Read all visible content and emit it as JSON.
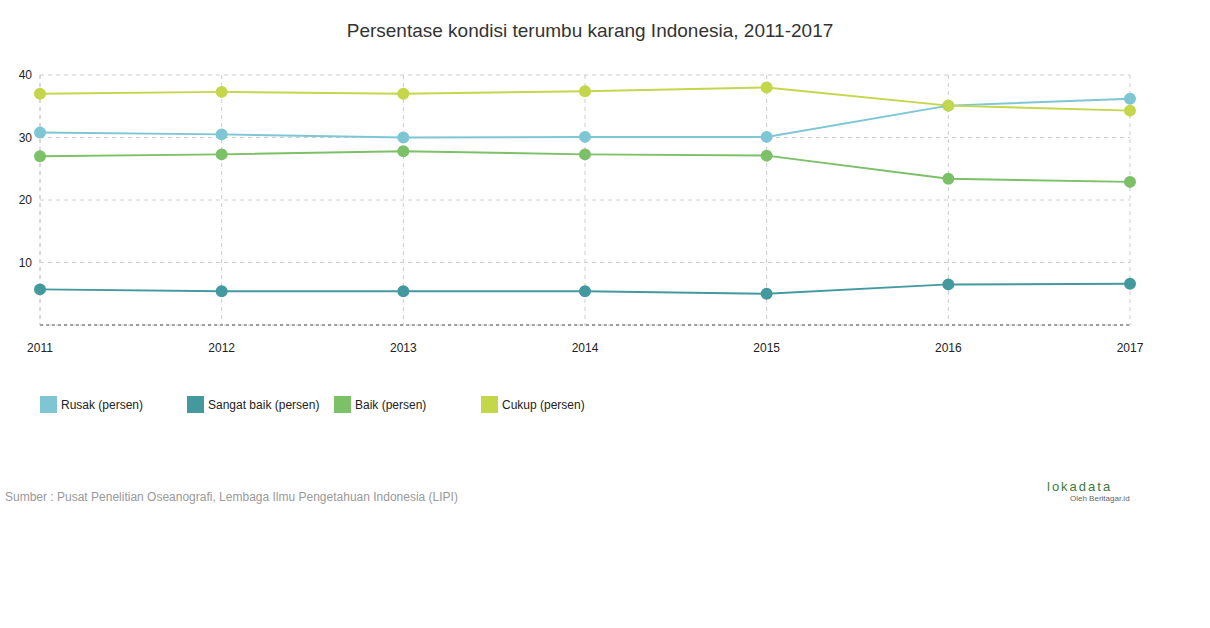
{
  "chart_data": {
    "type": "line",
    "title": "Persentase kondisi terumbu karang Indonesia, 2011-2017",
    "categories": [
      "2011",
      "2012",
      "2013",
      "2014",
      "2015",
      "2016",
      "2017"
    ],
    "series": [
      {
        "name": "Rusak (persen)",
        "color": "#7ec6d4",
        "values": [
          30.8,
          30.5,
          30.0,
          30.1,
          30.1,
          35.1,
          36.2
        ]
      },
      {
        "name": "Sangat baik (persen)",
        "color": "#44999f",
        "values": [
          5.7,
          5.4,
          5.4,
          5.4,
          5.0,
          6.5,
          6.6
        ]
      },
      {
        "name": "Baik (persen)",
        "color": "#7cc068",
        "values": [
          27.0,
          27.3,
          27.8,
          27.3,
          27.1,
          23.4,
          22.9
        ]
      },
      {
        "name": "Cukup (persen)",
        "color": "#c4d64a",
        "values": [
          37.0,
          37.3,
          37.0,
          37.4,
          38.0,
          35.1,
          34.3
        ]
      }
    ],
    "ylim": [
      0,
      40
    ],
    "yticks": [
      10,
      20,
      30,
      40
    ],
    "grid": true,
    "marker": "circle",
    "legend": "bottom left",
    "source": "Sumber : Pusat Penelitian Oseanografi, Lembaga Ilmu Pengetahuan Indonesia (LIPI)",
    "annotations": [
      "lokadata",
      "Oleh Beritagar.id"
    ]
  }
}
